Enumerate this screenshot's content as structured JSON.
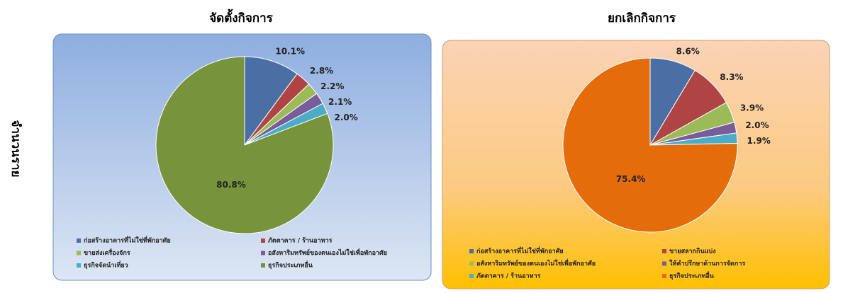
{
  "side_label": "จำนวนราย",
  "chart_data": [
    {
      "type": "pie",
      "title": "จัดตั้งกิจการ",
      "categories": [
        "ก่อสร้างอาคารที่ไม่ใช่ที่พักอาศัย",
        "ภัตตาคาร / ร้านอาหาร",
        "ขายส่งเครื่องจักร",
        "อสังหาริมทรัพย์ของตนเองไม่ใช่เพื่อพักอาศัย",
        "ธุรกิจจัดนำเที่ยว",
        "ธุรกิจประเภทอื่น"
      ],
      "values": [
        10.1,
        2.8,
        2.2,
        2.1,
        2.0,
        80.8
      ],
      "value_labels": [
        "10.1%",
        "2.8%",
        "2.2%",
        "2.1%",
        "2.0%",
        "80.8%"
      ],
      "colors": [
        "#4a6fa5",
        "#b04444",
        "#9bbb59",
        "#7a5c9b",
        "#4aacc6",
        "#77933c"
      ]
    },
    {
      "type": "pie",
      "title": "ยกเลิกกิจการ",
      "categories": [
        "ก่อสร้างอาคารที่ไม่ใช่ที่พักอาศัย",
        "ขายสลากกินแบ่ง",
        "อสังหาริมทรัพย์ของตนเองไม่ใช่เพื่อพักอาศัย",
        "ให้คำปรึกษาด้านการจัดการ",
        "ภัตตาคาร / ร้านอาหาร",
        "ธุรกิจประเภทอื่น"
      ],
      "values": [
        8.6,
        8.3,
        3.9,
        2.0,
        1.9,
        75.4
      ],
      "value_labels": [
        "8.6%",
        "8.3%",
        "3.9%",
        "2.0%",
        "1.9%",
        "75.4%"
      ],
      "colors": [
        "#4a6fa5",
        "#b04444",
        "#9bbb59",
        "#7a5c9b",
        "#4aacc6",
        "#e46c0a"
      ]
    }
  ]
}
